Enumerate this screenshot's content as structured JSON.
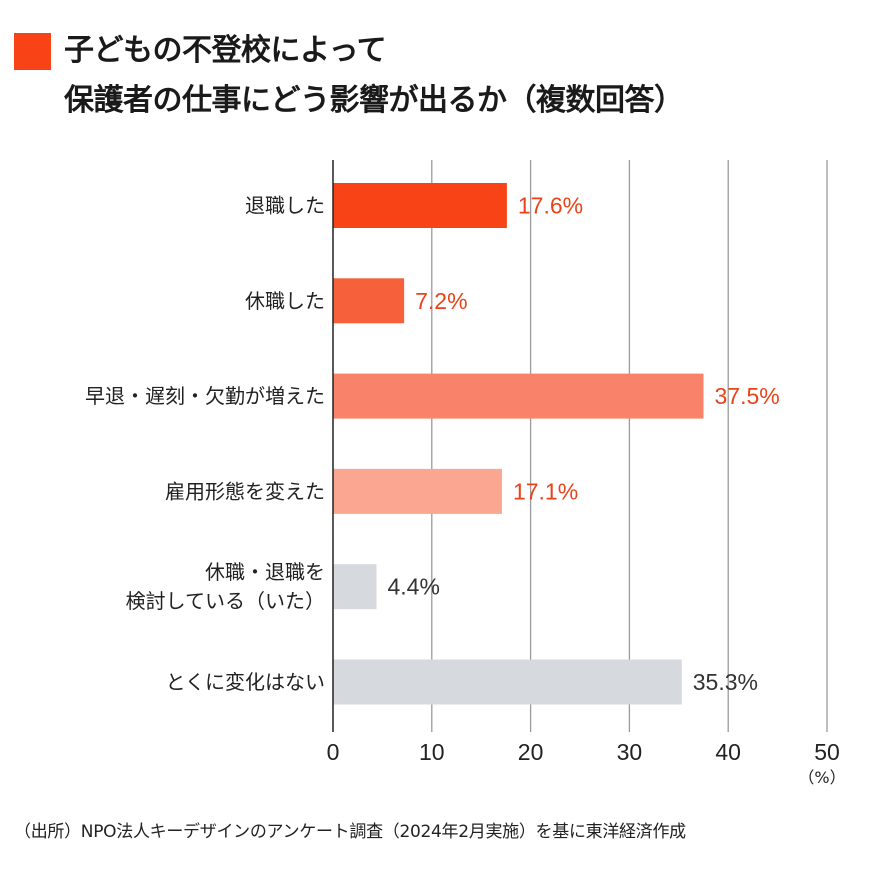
{
  "title_lines": [
    "子どもの不登校によって",
    "保護者の仕事にどう影響が出るか（複数回答）"
  ],
  "source": "（出所）NPO法人キーデザインのアンケート調査（2024年2月実施）を基に東洋経済作成",
  "chart_data": {
    "type": "bar",
    "orientation": "horizontal",
    "title": "子どもの不登校によって保護者の仕事にどう影響が出るか（複数回答）",
    "categories": [
      [
        "退職した"
      ],
      [
        "休職した"
      ],
      [
        "早退・遅刻・欠勤が増えた"
      ],
      [
        "雇用形態を変えた"
      ],
      [
        "休職・退職を",
        "検討している（いた）"
      ],
      [
        "とくに変化はない"
      ]
    ],
    "values": [
      17.6,
      7.2,
      37.5,
      17.1,
      4.4,
      35.3
    ],
    "value_labels": [
      "17.6%",
      "7.2%",
      "37.5%",
      "17.1%",
      "4.4%",
      "35.3%"
    ],
    "bar_colors": [
      "#F84316",
      "#F6603A",
      "#F9826A",
      "#FBA690",
      "#D6D9DE",
      "#D6D9DE"
    ],
    "label_colors": [
      "#E8431A",
      "#E8431A",
      "#E8431A",
      "#E8431A",
      "#333333",
      "#333333"
    ],
    "xlim": [
      0,
      50
    ],
    "xticks": [
      "0",
      "10",
      "20",
      "30",
      "40",
      "50"
    ],
    "xtick_values": [
      0,
      10,
      20,
      30,
      40,
      50
    ],
    "xlabel": "（%）",
    "grid": true
  }
}
